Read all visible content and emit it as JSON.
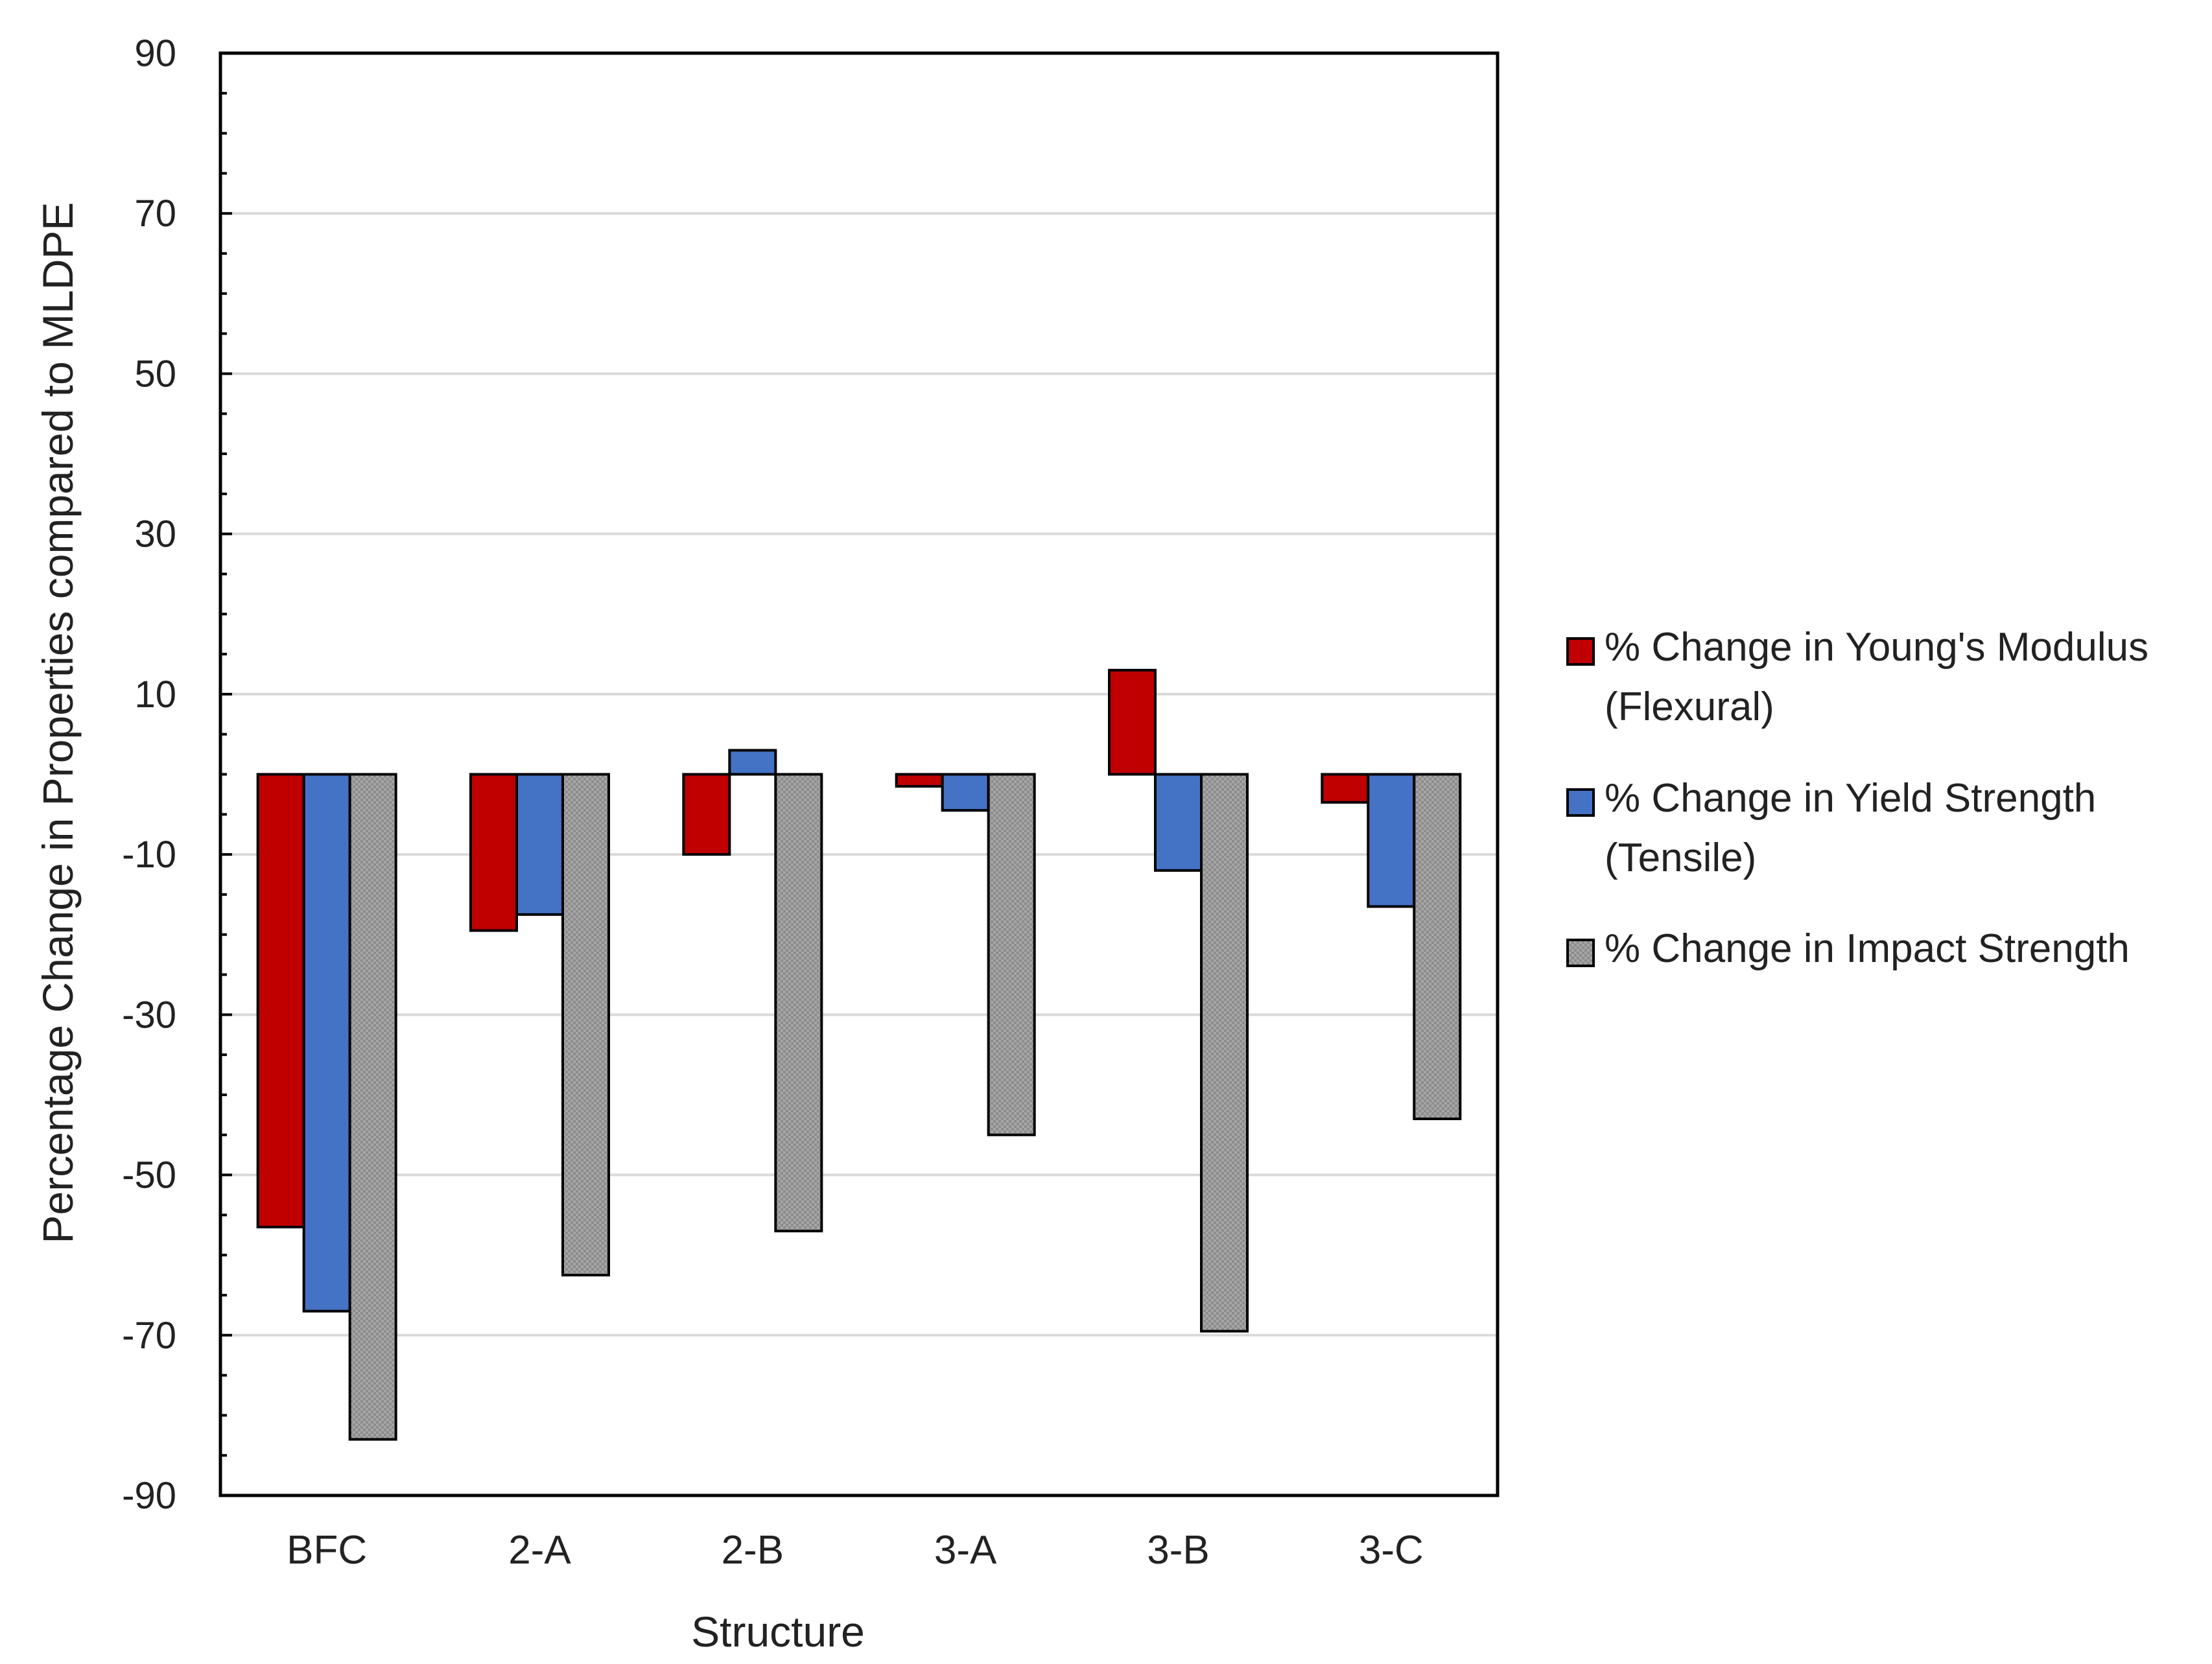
{
  "chart_data": {
    "type": "bar",
    "title": "",
    "xlabel": "Structure",
    "ylabel": "Percentage Change in Properties compared to MLDPE",
    "ylim": [
      -90,
      90
    ],
    "yticks": [
      90,
      70,
      50,
      30,
      10,
      -10,
      -30,
      -50,
      -70,
      -90
    ],
    "grid": true,
    "legend_position": "right",
    "categories": [
      "BFC",
      "2-A",
      "2-B",
      "3-A",
      "3-B",
      "3-C"
    ],
    "series": [
      {
        "name": "% Change in Young's Modulus (Flexural)",
        "legend_lines": [
          "% Change in Young's Modulus",
          "(Flexural)"
        ],
        "color": "#c00000",
        "values": [
          -56.5,
          -19.5,
          -10,
          -1.5,
          13,
          -3.5
        ]
      },
      {
        "name": "% Change in Yield Strength (Tensile)",
        "legend_lines": [
          "% Change in Yield Strength",
          "(Tensile)"
        ],
        "color": "#4472c4",
        "values": [
          -67,
          -17.5,
          3,
          -4.5,
          -12,
          -16.5
        ]
      },
      {
        "name": "% Change in Impact Strength",
        "legend_lines": [
          "% Change in Impact Strength"
        ],
        "color": "#8c8c8c",
        "values": [
          -83,
          -62.5,
          -57,
          -45,
          -69.5,
          -43
        ]
      }
    ]
  }
}
